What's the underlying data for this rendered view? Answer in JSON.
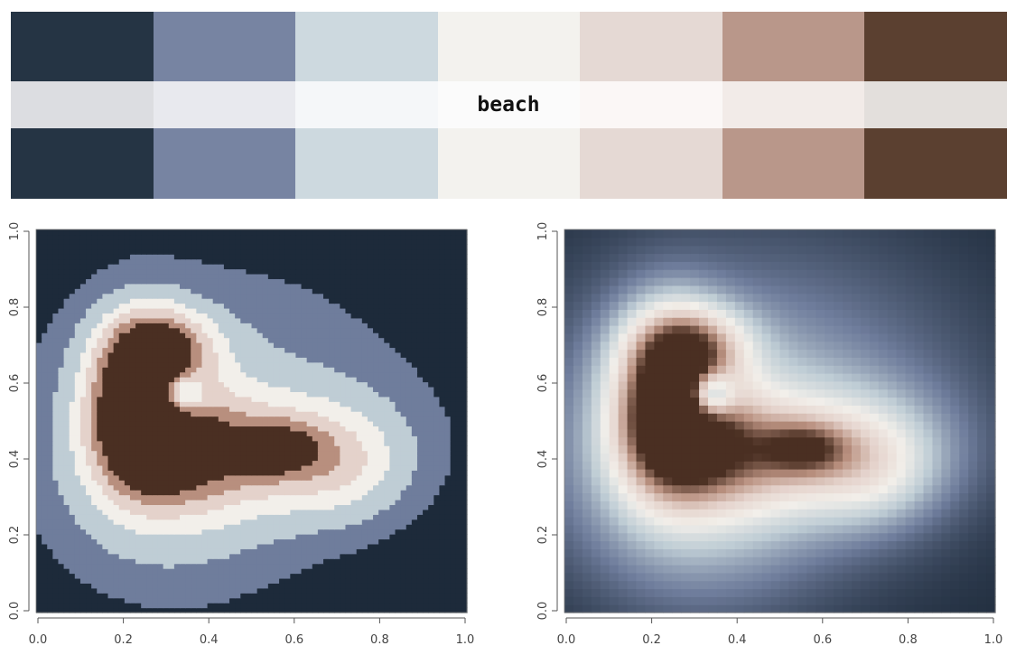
{
  "palette": {
    "name": "beach",
    "colors": [
      "#253444",
      "#7784a2",
      "#cdd9df",
      "#f3f2ee",
      "#e5d9d4",
      "#b9978a",
      "#5b4030"
    ],
    "middle_band_colors": [
      "#dcdde1",
      "#e8e9ee",
      "#f5f7f9",
      "#fbfbfb",
      "#fbf7f6",
      "#f2ebe8",
      "#e3dfdc"
    ]
  },
  "chart_data": [
    {
      "type": "heatmap",
      "style": "discrete",
      "title": "",
      "xlabel": "",
      "ylabel": "",
      "xlim": [
        0,
        1
      ],
      "ylim": [
        0,
        1
      ],
      "x_ticks": [
        "0.0",
        "0.2",
        "0.4",
        "0.6",
        "0.8",
        "1.0"
      ],
      "y_ticks": [
        "0.0",
        "0.2",
        "0.4",
        "0.6",
        "0.8",
        "1.0"
      ],
      "levels": 7,
      "colors": [
        "#1d2a3a",
        "#6f7d9c",
        "#bfcdd5",
        "#f2efea",
        "#e4d2cb",
        "#b88f7e",
        "#4a2f22"
      ]
    },
    {
      "type": "heatmap",
      "style": "continuous",
      "title": "",
      "xlabel": "",
      "ylabel": "",
      "xlim": [
        0,
        1
      ],
      "ylim": [
        0,
        1
      ],
      "x_ticks": [
        "0.0",
        "0.2",
        "0.4",
        "0.6",
        "0.8",
        "1.0"
      ],
      "y_ticks": [
        "0.0",
        "0.2",
        "0.4",
        "0.6",
        "0.8",
        "1.0"
      ],
      "colors": [
        "#1d2a3a",
        "#6f7d9c",
        "#bfcdd5",
        "#f2efea",
        "#e4d2cb",
        "#b88f7e",
        "#4a2f22"
      ]
    }
  ]
}
